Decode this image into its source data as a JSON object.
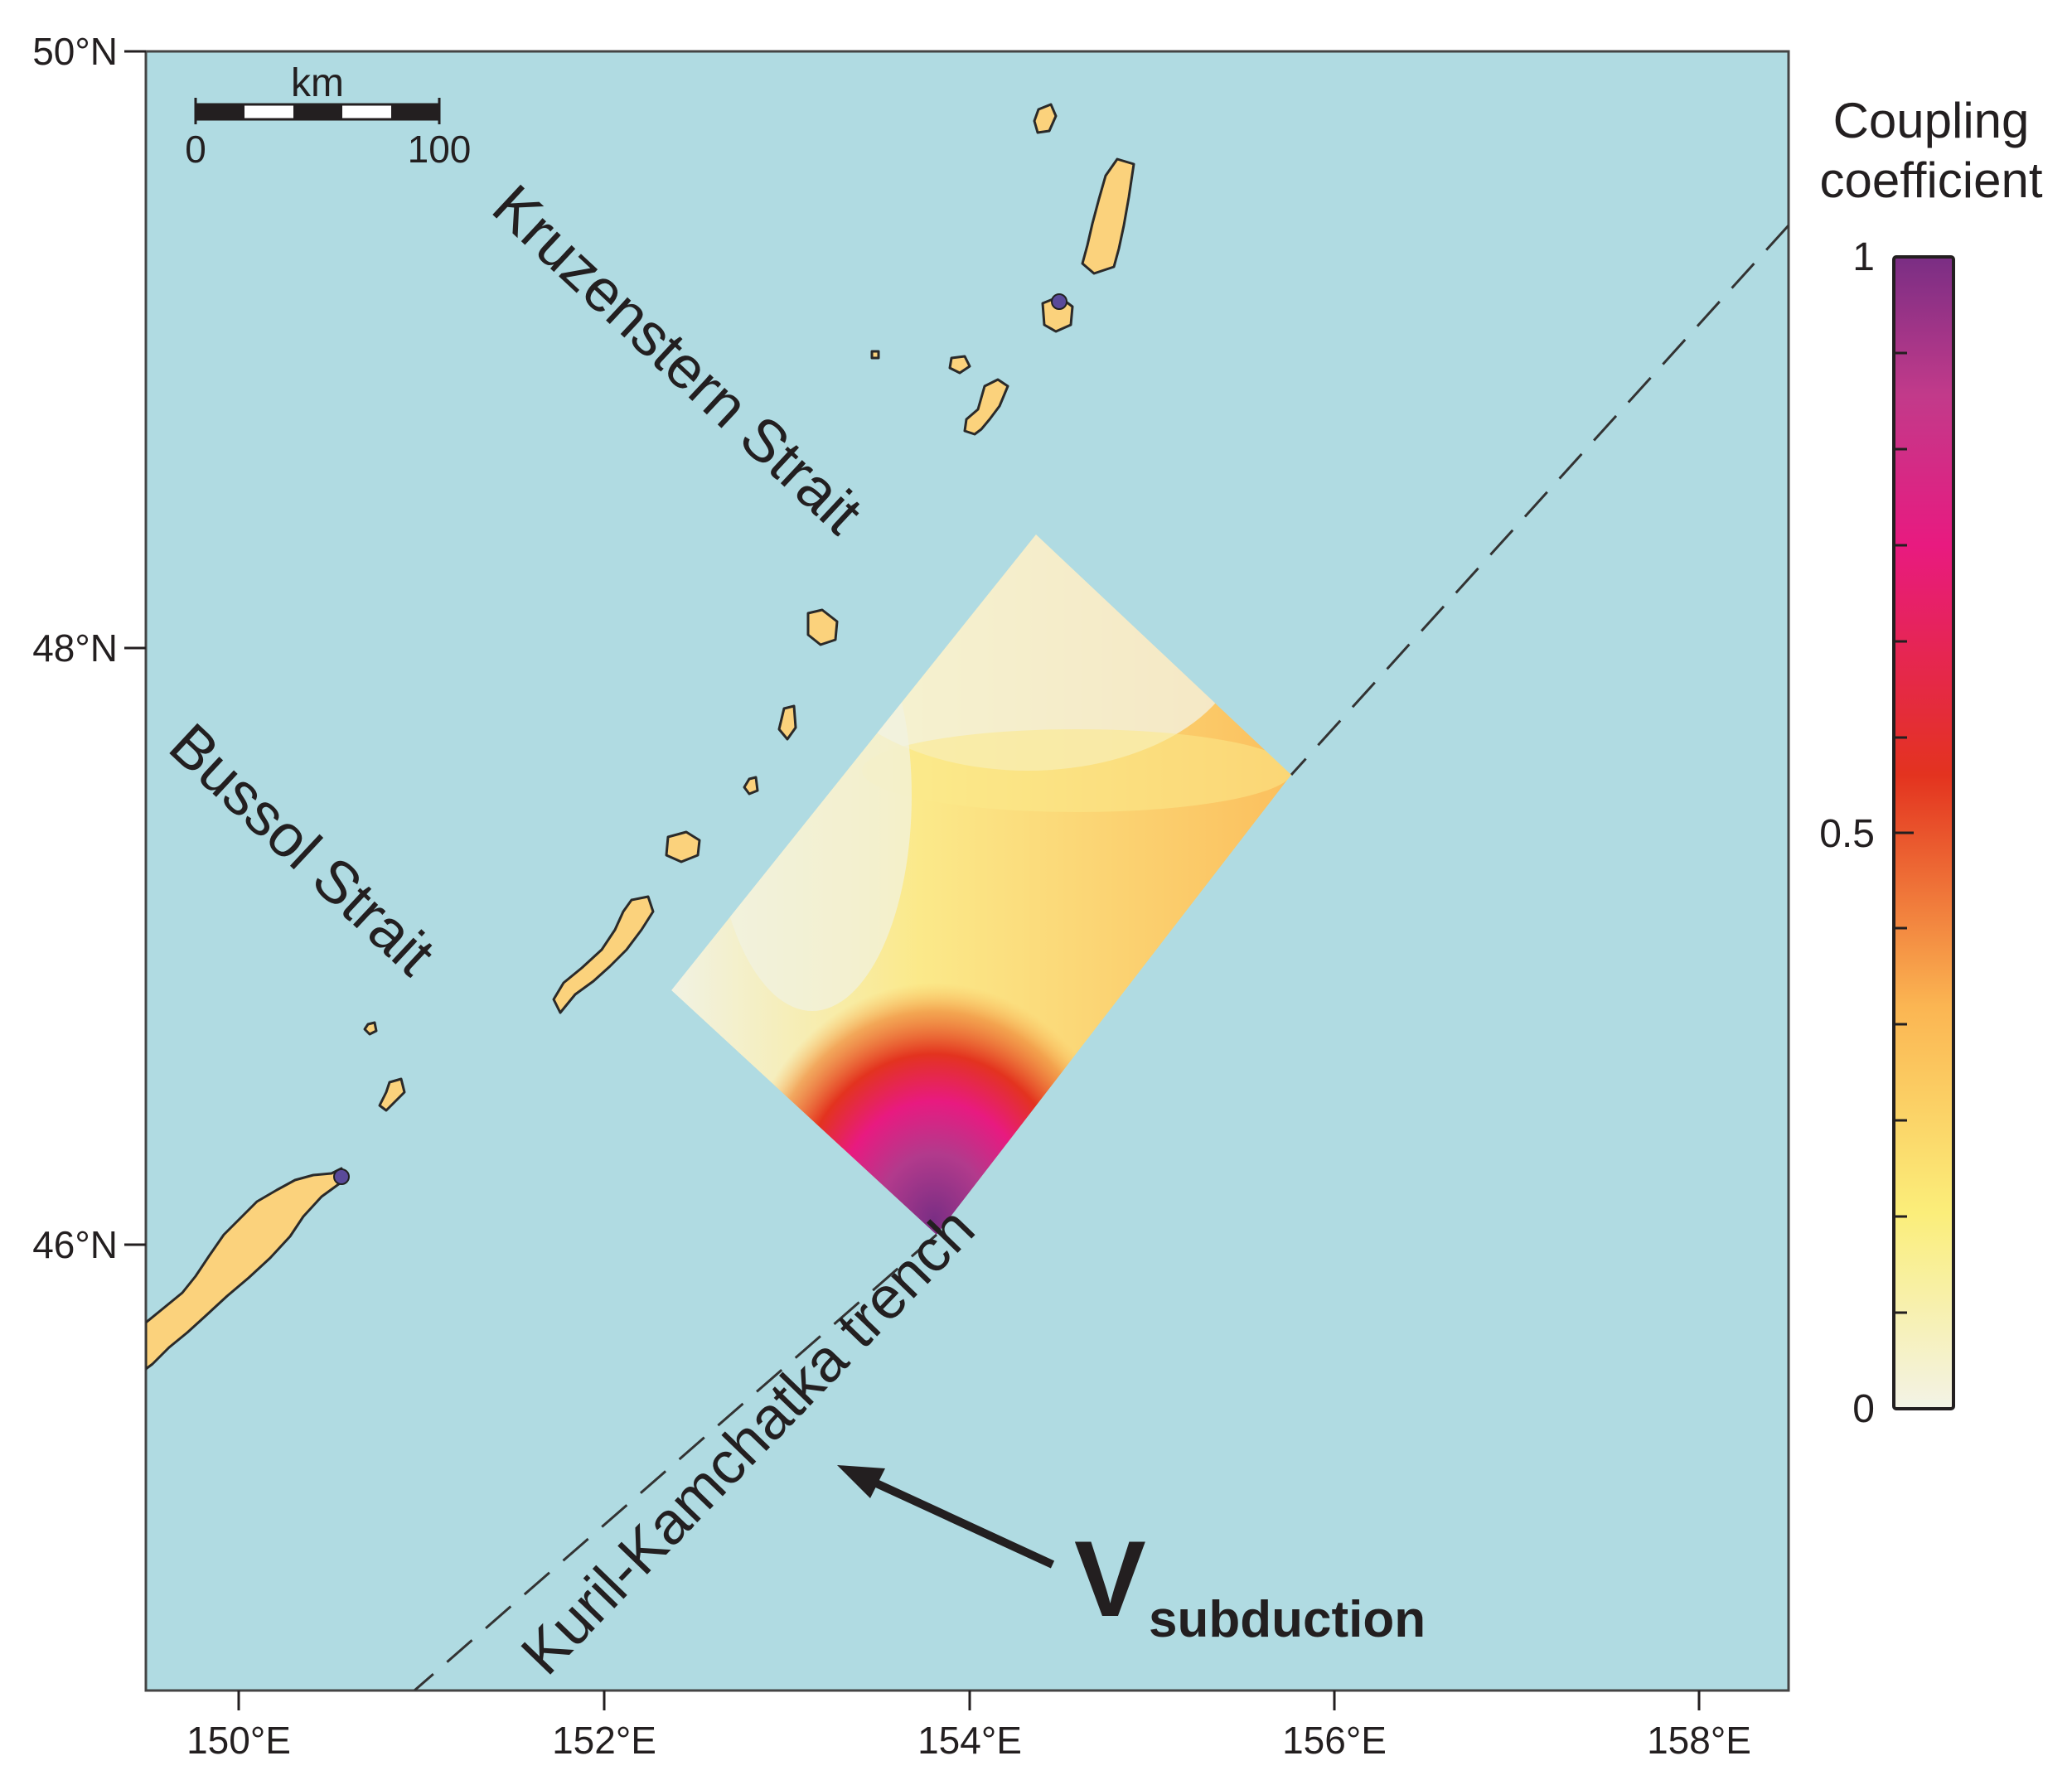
{
  "map": {
    "latitude_labels": [
      "50°N",
      "48°N",
      "46°N"
    ],
    "longitude_labels": [
      "150°E",
      "152°E",
      "154°E",
      "156°E",
      "158°E"
    ],
    "scale_bar": {
      "unit": "km",
      "start": "0",
      "end": "100"
    },
    "labels": {
      "kruzenstern": "Kruzenstern Strait",
      "bussol": "Bussol Strait",
      "trench": "Kuril-Kamchatka trench",
      "vector_main": "V",
      "vector_sub": "subduction"
    },
    "colors": {
      "ocean": "#b0dbe2",
      "land": "#fbd27c",
      "trench_line": "#333333"
    }
  },
  "legend": {
    "title_line1": "Coupling",
    "title_line2": "coefficient",
    "ticks": [
      "1",
      "0.5",
      "0"
    ],
    "colors": [
      "#f3f3e6",
      "#fbee7a",
      "#fbb552",
      "#e3331f",
      "#e81a80",
      "#c23a8a",
      "#7a2e84"
    ]
  }
}
